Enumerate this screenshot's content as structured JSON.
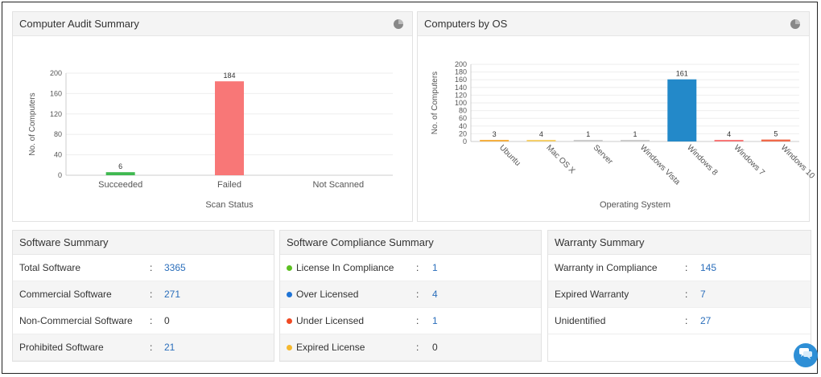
{
  "audit_panel": {
    "title": "Computer Audit Summary",
    "icon": "pie-chart-icon"
  },
  "os_panel": {
    "title": "Computers by OS",
    "icon": "pie-chart-icon"
  },
  "chart_data": [
    {
      "type": "bar",
      "categories": [
        "Succeeded",
        "Failed",
        "Not Scanned"
      ],
      "values": [
        6,
        184,
        0
      ],
      "value_labels": [
        "6",
        "184",
        ""
      ],
      "colors": [
        "#3fb950",
        "#f87777",
        "#999999"
      ],
      "xlabel": "Scan Status",
      "ylabel": "No. of Computers",
      "yticks": [
        "0",
        "40",
        "80",
        "120",
        "160",
        "200"
      ],
      "ylim": [
        0,
        200
      ],
      "grid": true
    },
    {
      "type": "bar",
      "categories": [
        "Ubuntu",
        "Mac OS X",
        "Server",
        "Windows Vista",
        "Windows 8",
        "Windows 7",
        "Windows 10"
      ],
      "values": [
        3,
        4,
        1,
        1,
        161,
        4,
        5
      ],
      "value_labels": [
        "3",
        "4",
        "1",
        "1",
        "161",
        "4",
        "5"
      ],
      "colors": [
        "#f5b041",
        "#f5cf6a",
        "#cccccc",
        "#cccccc",
        "#2389c9",
        "#f87777",
        "#f06a4a"
      ],
      "xlabel": "Operating System",
      "ylabel": "No. of Computers",
      "yticks": [
        "0",
        "20",
        "40",
        "60",
        "80",
        "100",
        "120",
        "140",
        "160",
        "180",
        "200"
      ],
      "ylim": [
        0,
        200
      ],
      "grid": true
    }
  ],
  "software_summary": {
    "title": "Software Summary",
    "rows": [
      {
        "label": "Total Software",
        "value": "3365"
      },
      {
        "label": "Commercial Software",
        "value": "271"
      },
      {
        "label": "Non-Commercial Software",
        "value": "0"
      },
      {
        "label": "Prohibited Software",
        "value": "21"
      }
    ]
  },
  "compliance_summary": {
    "title": "Software Compliance Summary",
    "rows": [
      {
        "label": "License In Compliance",
        "value": "1",
        "dot_color": "#5cc021"
      },
      {
        "label": "Over Licensed",
        "value": "4",
        "dot_color": "#1f74d6"
      },
      {
        "label": "Under Licensed",
        "value": "1",
        "dot_color": "#f04a23"
      },
      {
        "label": "Expired License",
        "value": "0",
        "dot_color": "#f5b82e"
      }
    ]
  },
  "warranty_summary": {
    "title": "Warranty Summary",
    "rows": [
      {
        "label": "Warranty in Compliance",
        "value": "145"
      },
      {
        "label": "Expired Warranty",
        "value": "7"
      },
      {
        "label": "Unidentified",
        "value": "27"
      }
    ]
  },
  "separator": ":",
  "chat_button": {
    "icon": "chat-bubble-icon"
  }
}
